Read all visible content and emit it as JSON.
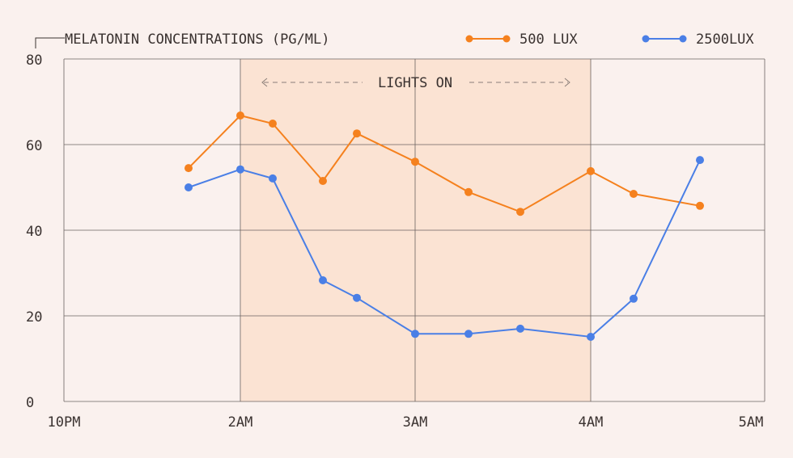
{
  "chart_data": {
    "type": "line",
    "title": "MELATONIN CONCENTRATIONS (PG/ML)",
    "xlabel": "",
    "ylabel": "",
    "ylim": [
      0,
      80
    ],
    "yticks": [
      "0",
      "20",
      "40",
      "60",
      "80"
    ],
    "xticks": [
      "10PM",
      "2AM",
      "3AM",
      "4AM",
      "5AM"
    ],
    "grid": true,
    "legend_position": "top-right",
    "annotation": {
      "text": "LIGHTS ON",
      "start": "2AM",
      "end": "4AM",
      "color": "#fbe3d3"
    },
    "x": [
      "~1:40AM",
      "2:00AM",
      "2:11AM",
      "2:28AM",
      "2:40AM",
      "3:00AM",
      "3:18AM",
      "3:36AM",
      "4:00AM",
      "4:15AM",
      "4:38AM"
    ],
    "series": [
      {
        "name": "500 LUX",
        "color": "#f5811e",
        "values": [
          54.5,
          66.8,
          64.9,
          51.5,
          62.6,
          56,
          48.9,
          44.3,
          53.8,
          48.5,
          45.7
        ]
      },
      {
        "name": "2500LUX",
        "color": "#4a7fe6",
        "values": [
          50,
          54.2,
          52.1,
          28.3,
          24.2,
          15.8,
          15.8,
          17,
          15.1,
          24,
          56.4
        ]
      }
    ]
  }
}
